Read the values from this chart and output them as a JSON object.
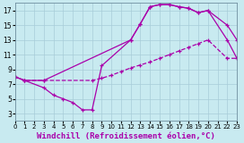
{
  "bg_color": "#c8eaf0",
  "grid_color": "#a8ccd8",
  "line_color": "#aa00aa",
  "xlabel": "Windchill (Refroidissement éolien,°C)",
  "xlim": [
    0,
    23
  ],
  "ylim": [
    2,
    18
  ],
  "yticks": [
    3,
    5,
    7,
    9,
    11,
    13,
    15,
    17
  ],
  "curve1_x": [
    0,
    1,
    3,
    4,
    5,
    6,
    7,
    8,
    9,
    12,
    13,
    14,
    15,
    16,
    17,
    18,
    19,
    20,
    22,
    23
  ],
  "curve1_y": [
    8.0,
    7.5,
    6.5,
    5.5,
    5.0,
    4.5,
    3.5,
    3.5,
    9.5,
    13.0,
    15.2,
    17.5,
    17.8,
    17.8,
    17.5,
    17.3,
    16.7,
    17.0,
    13.0,
    10.5
  ],
  "curve2_x": [
    0,
    1,
    3,
    12,
    13,
    14,
    15,
    16,
    17,
    18,
    19,
    20,
    22,
    23
  ],
  "curve2_y": [
    8.0,
    7.5,
    7.5,
    13.0,
    15.2,
    17.5,
    17.8,
    17.8,
    17.5,
    17.3,
    16.7,
    17.0,
    15.0,
    13.0
  ],
  "curve3_x": [
    0,
    1,
    3,
    8,
    9,
    10,
    11,
    12,
    13,
    14,
    15,
    16,
    17,
    18,
    19,
    20,
    22,
    23
  ],
  "curve3_y": [
    8.0,
    7.5,
    7.5,
    7.5,
    7.8,
    8.2,
    8.7,
    9.2,
    9.6,
    10.0,
    10.5,
    11.0,
    11.5,
    12.0,
    12.5,
    13.0,
    10.5,
    10.5
  ],
  "tick_fontsize": 5,
  "label_fontsize": 6.5
}
